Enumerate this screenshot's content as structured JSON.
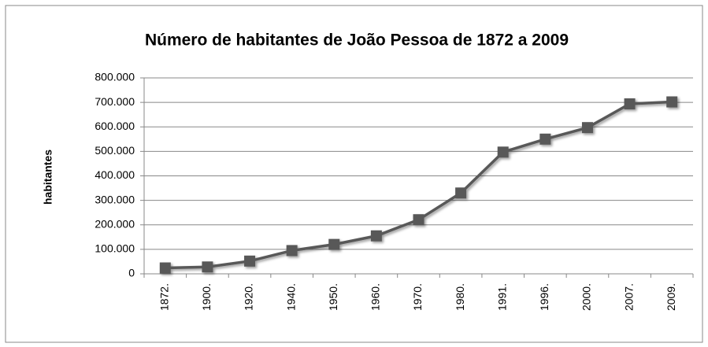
{
  "chart_data": {
    "type": "line",
    "title": "Número de habitantes de João Pessoa de 1872 a 2009",
    "y_label": "habitantes",
    "categories": [
      "1872.",
      "1900.",
      "1920.",
      "1940.",
      "1950.",
      "1960.",
      "1970.",
      "1980.",
      "1991.",
      "1996.",
      "2000.",
      "2007.",
      "2009."
    ],
    "values": [
      24000,
      28000,
      52000,
      95000,
      120000,
      155000,
      221000,
      330000,
      497000,
      550000,
      597000,
      694000,
      702000
    ],
    "color": "#595959",
    "ylim": [
      0,
      800000
    ],
    "yticks": [
      0,
      {
        "value": 100000,
        "label": "100.000"
      },
      {
        "value": 200000,
        "label": "200.000"
      },
      {
        "value": 300000,
        "label": "300.000"
      },
      {
        "value": 400000,
        "label": "400.000"
      },
      {
        "value": 500000,
        "label": "500.000"
      },
      {
        "value": 600000,
        "label": "600.000"
      },
      {
        "value": 700000,
        "label": "700.000"
      },
      {
        "value": 800000,
        "label": "800.000"
      }
    ],
    "grid": true
  }
}
